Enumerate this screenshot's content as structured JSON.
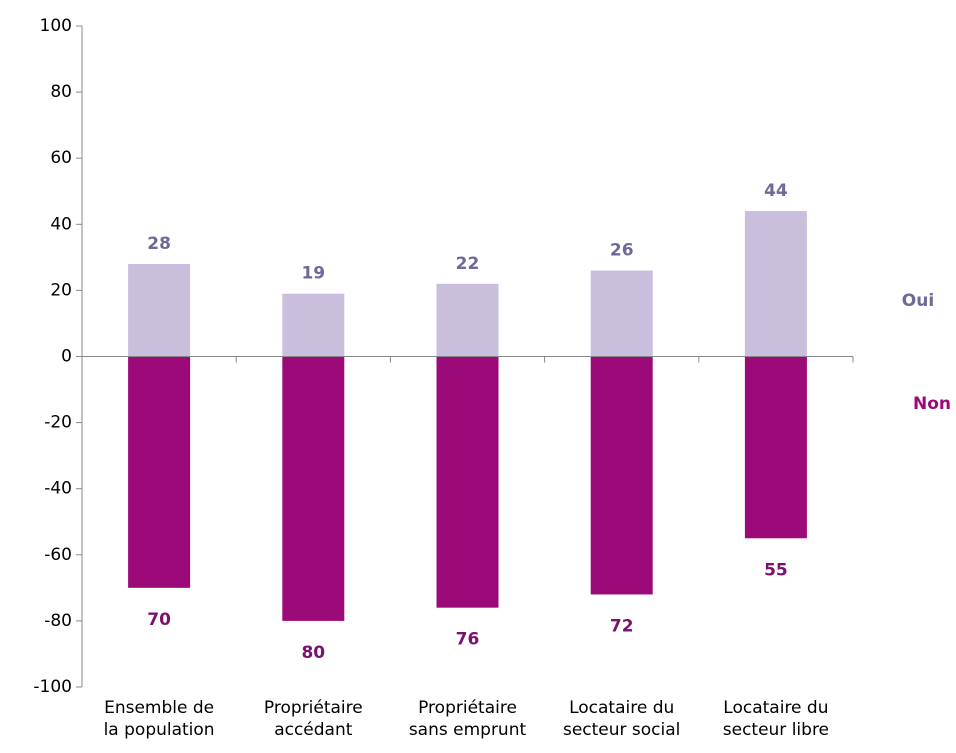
{
  "chart_data": {
    "type": "bar",
    "categories": [
      "Ensemble de\nla population",
      "Propriétaire\naccédant",
      "Propriétaire\nsans emprunt",
      "Locataire du\nsecteur social",
      "Locataire  du\nsecteur libre"
    ],
    "series": [
      {
        "name": "Oui",
        "color": "#c9bfdc",
        "label_color": "#6c6a98",
        "values": [
          28,
          19,
          22,
          26,
          44
        ]
      },
      {
        "name": "Non",
        "color": "#9c0a7a",
        "label_color": "#7c1070",
        "values": [
          -70,
          -80,
          -76,
          -72,
          -55
        ],
        "value_labels": [
          "70",
          "80",
          "76",
          "72",
          "55"
        ]
      }
    ],
    "ylim": [
      -100,
      100
    ],
    "yticks": [
      -100,
      -80,
      -60,
      -40,
      -20,
      0,
      20,
      40,
      60,
      80,
      100
    ],
    "grid": false
  }
}
